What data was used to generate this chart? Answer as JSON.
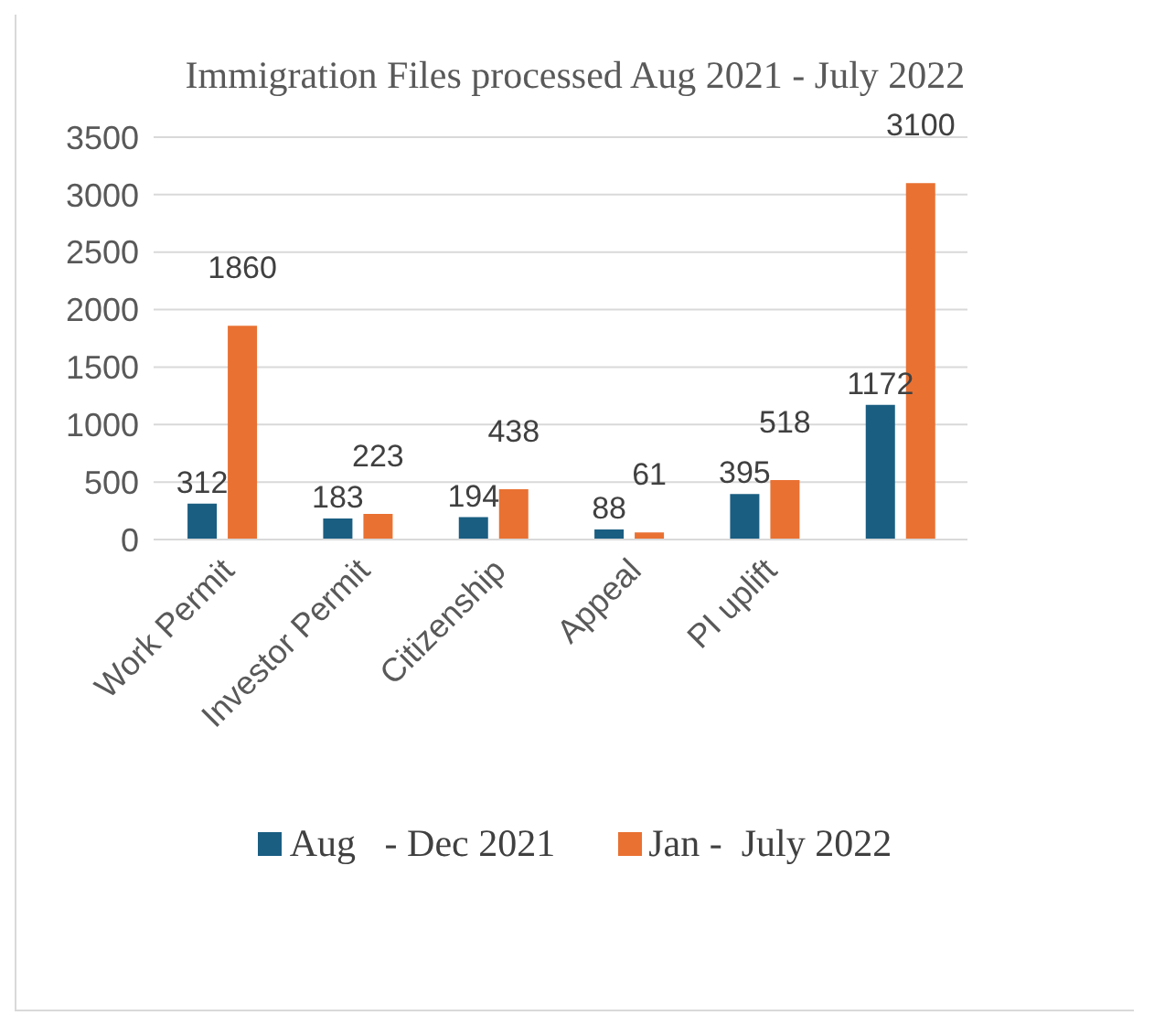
{
  "chart_data": {
    "type": "bar",
    "title": "Immigration Files processed Aug 2021 - July 2022",
    "categories": [
      "Work Permit",
      "Investor Permit",
      "Citizenship",
      "Appeal",
      "PI uplift",
      null
    ],
    "series": [
      {
        "name": "Aug   - Dec 2021",
        "color": "#1a5e82",
        "values": [
          312,
          183,
          194,
          88,
          395,
          1172
        ]
      },
      {
        "name": "Jan -  July 2022",
        "color": "#e97132",
        "values": [
          1860,
          223,
          438,
          61,
          518,
          3100
        ]
      }
    ],
    "ylim": [
      0,
      3500
    ],
    "yticks": [
      0,
      500,
      1000,
      1500,
      2000,
      2500,
      3000,
      3500
    ],
    "grid": "y",
    "legend": "bottom",
    "data_labels": true
  }
}
